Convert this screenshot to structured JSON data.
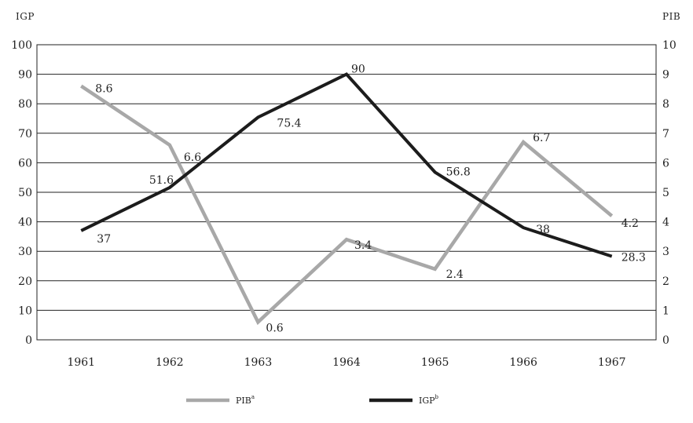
{
  "chart_data": {
    "type": "line",
    "left_axis_title": "IGP",
    "right_axis_title": "PIB",
    "x": [
      "1961",
      "1962",
      "1963",
      "1964",
      "1965",
      "1966",
      "1967"
    ],
    "left_ticks": [
      "0",
      "10",
      "20",
      "30",
      "40",
      "50",
      "60",
      "70",
      "80",
      "90",
      "100"
    ],
    "right_ticks": [
      "0",
      "1",
      "2",
      "3",
      "4",
      "5",
      "6",
      "7",
      "8",
      "9",
      "10"
    ],
    "ylim_left": [
      0,
      100
    ],
    "ylim_right": [
      0,
      10
    ],
    "grid": true,
    "legend_position": "bottom",
    "series": [
      {
        "name": "PIB",
        "superscript": "a",
        "axis": "right",
        "color": "#a8a8a8",
        "values": [
          8.6,
          6.6,
          0.6,
          3.4,
          2.4,
          6.7,
          4.2
        ],
        "labels": [
          "8.6",
          "6.6",
          "0.6",
          "3.4",
          "2.4",
          "6.7",
          "4.2"
        ]
      },
      {
        "name": "IGP",
        "superscript": "b",
        "axis": "left",
        "color": "#1c1c1c",
        "values": [
          37,
          51.6,
          75.4,
          90,
          56.8,
          38,
          28.3
        ],
        "labels": [
          "37",
          "51.6",
          "75.4",
          "90",
          "56.8",
          "38",
          "28.3"
        ]
      }
    ]
  }
}
